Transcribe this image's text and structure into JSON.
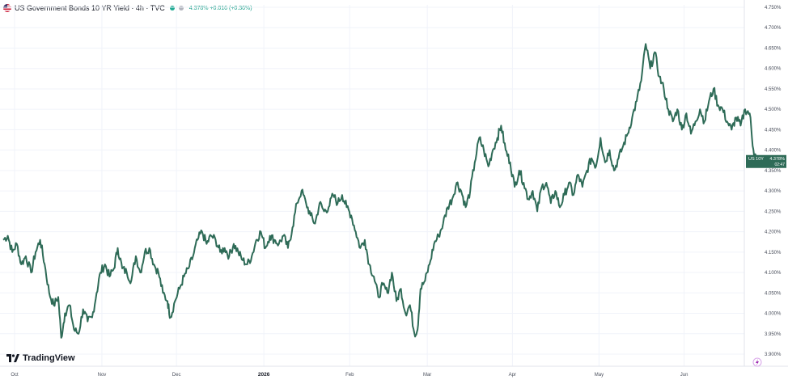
{
  "header": {
    "title": "US Government Bonds 10 YR Yield · 4h · TVC",
    "quote": "4.378% +0.016 (+0.36%)"
  },
  "brand": {
    "name": "TradingView"
  },
  "price_label": {
    "symbol": "US 10Y",
    "value": "4.378%",
    "countdown": "02:47"
  },
  "colors": {
    "line": "#2e6b57",
    "tag_bg": "#2e6b57",
    "grid": "#f0f3fa",
    "up": "#089981"
  },
  "chart_data": {
    "type": "line",
    "title": "US Government Bonds 10 YR Yield · 4h · TVC",
    "xlabel": "",
    "ylabel": "",
    "ylim": [
      3.9,
      4.75
    ],
    "y_ticks": [
      "4.750%",
      "4.700%",
      "4.650%",
      "4.600%",
      "4.550%",
      "4.500%",
      "4.450%",
      "4.400%",
      "4.350%",
      "4.300%",
      "4.250%",
      "4.200%",
      "4.150%",
      "4.100%",
      "4.050%",
      "4.000%",
      "3.950%",
      "3.900%"
    ],
    "x_ticks": [
      {
        "label": "Oct",
        "t": 0.0,
        "bold": false
      },
      {
        "label": "Nov",
        "t": 0.131,
        "bold": false
      },
      {
        "label": "Dec",
        "t": 0.23,
        "bold": false
      },
      {
        "label": "2026",
        "t": 0.346,
        "bold": true
      },
      {
        "label": "Feb",
        "t": 0.46,
        "bold": false
      },
      {
        "label": "Mar",
        "t": 0.563,
        "bold": false
      },
      {
        "label": "Apr",
        "t": 0.676,
        "bold": false
      },
      {
        "label": "May",
        "t": 0.791,
        "bold": false
      },
      {
        "label": "Jun",
        "t": 0.904,
        "bold": false
      }
    ],
    "series": [
      {
        "name": "",
        "points": [
          [
            0.0,
            4.18
          ],
          [
            0.006,
            4.19
          ],
          [
            0.012,
            4.15
          ],
          [
            0.018,
            4.17
          ],
          [
            0.024,
            4.12
          ],
          [
            0.03,
            4.14
          ],
          [
            0.037,
            4.1
          ],
          [
            0.043,
            4.15
          ],
          [
            0.049,
            4.18
          ],
          [
            0.055,
            4.12
          ],
          [
            0.061,
            4.05
          ],
          [
            0.067,
            4.02
          ],
          [
            0.073,
            4.04
          ],
          [
            0.077,
            3.94
          ],
          [
            0.082,
            4.0
          ],
          [
            0.088,
            4.02
          ],
          [
            0.094,
            3.96
          ],
          [
            0.1,
            3.95
          ],
          [
            0.106,
            4.01
          ],
          [
            0.112,
            3.98
          ],
          [
            0.118,
            3.99
          ],
          [
            0.124,
            4.05
          ],
          [
            0.129,
            4.1
          ],
          [
            0.135,
            4.12
          ],
          [
            0.141,
            4.09
          ],
          [
            0.147,
            4.11
          ],
          [
            0.152,
            4.16
          ],
          [
            0.158,
            4.11
          ],
          [
            0.164,
            4.1
          ],
          [
            0.17,
            4.08
          ],
          [
            0.176,
            4.14
          ],
          [
            0.182,
            4.1
          ],
          [
            0.188,
            4.15
          ],
          [
            0.194,
            4.16
          ],
          [
            0.2,
            4.12
          ],
          [
            0.206,
            4.1
          ],
          [
            0.212,
            4.05
          ],
          [
            0.218,
            4.03
          ],
          [
            0.222,
            3.99
          ],
          [
            0.228,
            4.03
          ],
          [
            0.234,
            4.06
          ],
          [
            0.24,
            4.09
          ],
          [
            0.246,
            4.11
          ],
          [
            0.252,
            4.14
          ],
          [
            0.258,
            4.18
          ],
          [
            0.264,
            4.2
          ],
          [
            0.27,
            4.17
          ],
          [
            0.276,
            4.19
          ],
          [
            0.282,
            4.18
          ],
          [
            0.288,
            4.15
          ],
          [
            0.294,
            4.16
          ],
          [
            0.3,
            4.14
          ],
          [
            0.306,
            4.17
          ],
          [
            0.312,
            4.15
          ],
          [
            0.318,
            4.13
          ],
          [
            0.324,
            4.12
          ],
          [
            0.33,
            4.14
          ],
          [
            0.336,
            4.18
          ],
          [
            0.342,
            4.2
          ],
          [
            0.348,
            4.16
          ],
          [
            0.354,
            4.19
          ],
          [
            0.36,
            4.18
          ],
          [
            0.366,
            4.17
          ],
          [
            0.372,
            4.19
          ],
          [
            0.378,
            4.16
          ],
          [
            0.384,
            4.21
          ],
          [
            0.39,
            4.27
          ],
          [
            0.396,
            4.3
          ],
          [
            0.402,
            4.27
          ],
          [
            0.408,
            4.24
          ],
          [
            0.414,
            4.22
          ],
          [
            0.42,
            4.27
          ],
          [
            0.426,
            4.25
          ],
          [
            0.432,
            4.26
          ],
          [
            0.438,
            4.29
          ],
          [
            0.444,
            4.27
          ],
          [
            0.45,
            4.29
          ],
          [
            0.456,
            4.26
          ],
          [
            0.462,
            4.24
          ],
          [
            0.468,
            4.2
          ],
          [
            0.474,
            4.16
          ],
          [
            0.48,
            4.18
          ],
          [
            0.486,
            4.12
          ],
          [
            0.492,
            4.09
          ],
          [
            0.498,
            4.04
          ],
          [
            0.504,
            4.07
          ],
          [
            0.51,
            4.05
          ],
          [
            0.516,
            4.1
          ],
          [
            0.522,
            4.03
          ],
          [
            0.528,
            4.06
          ],
          [
            0.534,
            4.0
          ],
          [
            0.54,
            4.02
          ],
          [
            0.546,
            3.95
          ],
          [
            0.55,
            3.96
          ],
          [
            0.554,
            4.06
          ],
          [
            0.56,
            4.08
          ],
          [
            0.566,
            4.12
          ],
          [
            0.572,
            4.17
          ],
          [
            0.578,
            4.19
          ],
          [
            0.584,
            4.22
          ],
          [
            0.59,
            4.26
          ],
          [
            0.596,
            4.28
          ],
          [
            0.602,
            4.32
          ],
          [
            0.608,
            4.3
          ],
          [
            0.614,
            4.26
          ],
          [
            0.62,
            4.3
          ],
          [
            0.626,
            4.37
          ],
          [
            0.632,
            4.43
          ],
          [
            0.638,
            4.4
          ],
          [
            0.644,
            4.36
          ],
          [
            0.65,
            4.4
          ],
          [
            0.656,
            4.43
          ],
          [
            0.661,
            4.46
          ],
          [
            0.667,
            4.4
          ],
          [
            0.673,
            4.37
          ],
          [
            0.679,
            4.31
          ],
          [
            0.685,
            4.35
          ],
          [
            0.691,
            4.32
          ],
          [
            0.697,
            4.28
          ],
          [
            0.703,
            4.3
          ],
          [
            0.709,
            4.25
          ],
          [
            0.715,
            4.31
          ],
          [
            0.721,
            4.32
          ],
          [
            0.727,
            4.27
          ],
          [
            0.733,
            4.3
          ],
          [
            0.739,
            4.26
          ],
          [
            0.745,
            4.29
          ],
          [
            0.751,
            4.32
          ],
          [
            0.757,
            4.29
          ],
          [
            0.763,
            4.34
          ],
          [
            0.769,
            4.31
          ],
          [
            0.775,
            4.35
          ],
          [
            0.781,
            4.38
          ],
          [
            0.787,
            4.36
          ],
          [
            0.793,
            4.43
          ],
          [
            0.799,
            4.37
          ],
          [
            0.805,
            4.4
          ],
          [
            0.811,
            4.35
          ],
          [
            0.817,
            4.38
          ],
          [
            0.823,
            4.41
          ],
          [
            0.829,
            4.44
          ],
          [
            0.835,
            4.48
          ],
          [
            0.841,
            4.52
          ],
          [
            0.847,
            4.57
          ],
          [
            0.853,
            4.66
          ],
          [
            0.859,
            4.6
          ],
          [
            0.865,
            4.64
          ],
          [
            0.871,
            4.58
          ],
          [
            0.877,
            4.55
          ],
          [
            0.883,
            4.5
          ],
          [
            0.889,
            4.47
          ],
          [
            0.895,
            4.5
          ],
          [
            0.901,
            4.45
          ],
          [
            0.907,
            4.49
          ],
          [
            0.913,
            4.44
          ],
          [
            0.919,
            4.47
          ],
          [
            0.925,
            4.5
          ],
          [
            0.931,
            4.47
          ],
          [
            0.937,
            4.52
          ],
          [
            0.943,
            4.55
          ],
          [
            0.949,
            4.51
          ],
          [
            0.955,
            4.5
          ],
          [
            0.961,
            4.47
          ],
          [
            0.967,
            4.45
          ],
          [
            0.973,
            4.48
          ],
          [
            0.979,
            4.46
          ],
          [
            0.985,
            4.5
          ],
          [
            0.991,
            4.49
          ],
          [
            0.996,
            4.4
          ],
          [
            1.0,
            4.378
          ]
        ]
      }
    ]
  }
}
